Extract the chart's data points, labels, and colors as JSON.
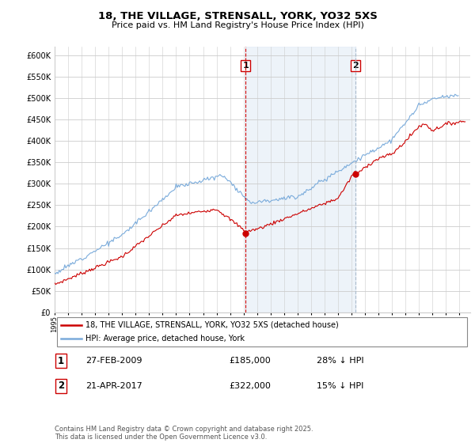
{
  "title": "18, THE VILLAGE, STRENSALL, YORK, YO32 5XS",
  "subtitle": "Price paid vs. HM Land Registry's House Price Index (HPI)",
  "ylim": [
    0,
    620000
  ],
  "yticks": [
    0,
    50000,
    100000,
    150000,
    200000,
    250000,
    300000,
    350000,
    400000,
    450000,
    500000,
    550000,
    600000
  ],
  "legend_label_red": "18, THE VILLAGE, STRENSALL, YORK, YO32 5XS (detached house)",
  "legend_label_blue": "HPI: Average price, detached house, York",
  "event1_label": "1",
  "event1_date": "27-FEB-2009",
  "event1_price": "£185,000",
  "event1_hpi": "28% ↓ HPI",
  "event2_label": "2",
  "event2_date": "21-APR-2017",
  "event2_price": "£322,000",
  "event2_hpi": "15% ↓ HPI",
  "footer": "Contains HM Land Registry data © Crown copyright and database right 2025.\nThis data is licensed under the Open Government Licence v3.0.",
  "red_color": "#cc0000",
  "blue_color": "#7aabdb",
  "event1_vline_color": "#cc0000",
  "event2_vline_color": "#aabbcc",
  "bg_color": "#dde8f5",
  "plot_bg": "#ffffff",
  "grid_color": "#cccccc",
  "event1_x_year": 2009.15,
  "event2_x_year": 2017.3,
  "xlim_left": 1995.0,
  "xlim_right": 2025.8
}
